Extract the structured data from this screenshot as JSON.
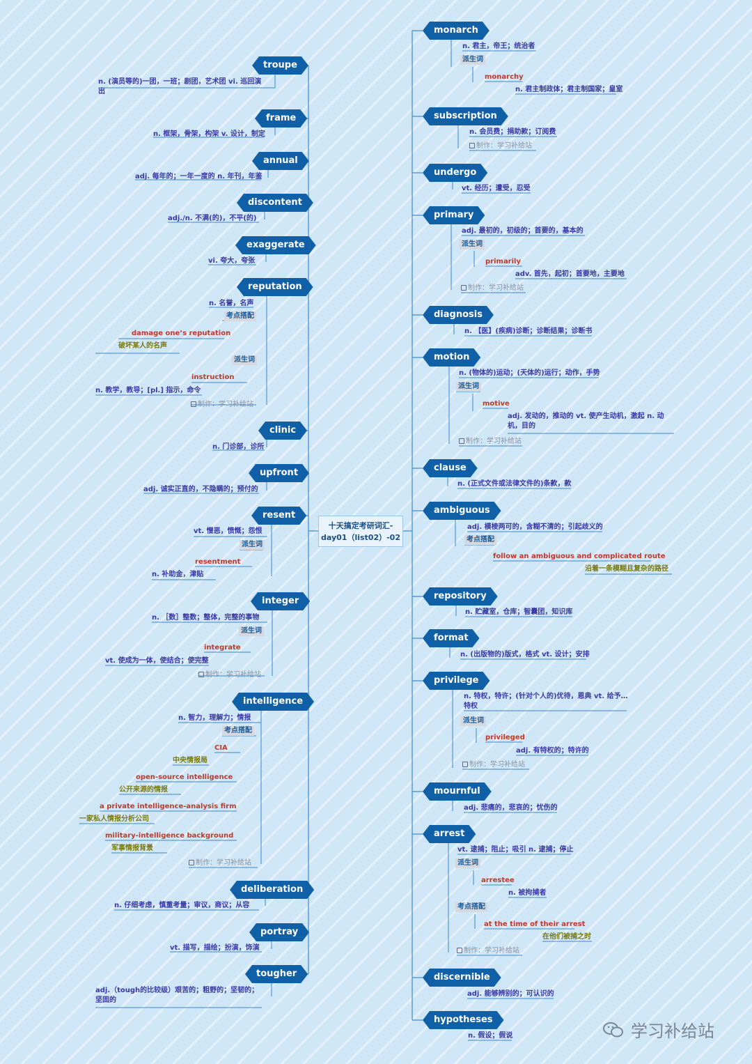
{
  "center": {
    "line1": "十天搞定考研词汇-",
    "line2": "day01（list02）-02"
  },
  "watermark": {
    "text": "学习补给站",
    "icon": "wechat-icon"
  },
  "colors": {
    "node": "#1060a8",
    "definition": "#3a3aa6",
    "phrase": "#c0392b",
    "translation": "#7a7a10",
    "tag_bg": "#d5d8de"
  },
  "left": [
    {
      "word": "troupe",
      "definition": "n. (演员等的)一团，一班；剧团，艺术团 vi. 巡回演出"
    },
    {
      "word": "frame",
      "definition": "n. 框架，骨架，构架 v. 设计，制定"
    },
    {
      "word": "annual",
      "definition": "adj. 每年的；一年一度的 n. 年刊，年鉴"
    },
    {
      "word": "discontent",
      "definition": "adj./n. 不满(的)，不平(的)"
    },
    {
      "word": "exaggerate",
      "definition": "vi. 夸大，夸张"
    },
    {
      "word": "reputation",
      "definition": "n. 名誉，名声",
      "tag1": "考点搭配",
      "phrase": "damage one’s reputation",
      "translation": "破坏某人的名声",
      "tag2": "派生词",
      "derived": "instruction",
      "derived_def": "n. 教学，教导；[pl.] 指示，命令",
      "maker": "制作：学习补给站"
    },
    {
      "word": "clinic",
      "definition": "n. 门诊部，诊所"
    },
    {
      "word": "upfront",
      "definition": "adj. 诚实正直的，不隐瞒的；预付的"
    },
    {
      "word": "resent",
      "definition": "vt. 憎恶，愤慨；怨恨",
      "tag1": "派生词",
      "derived": "resentment",
      "derived_def": "n. 补助金，津贴"
    },
    {
      "word": "integer",
      "definition": "n. ［数］整数；整体，完整的事物",
      "tag1": "派生词",
      "derived": "integrate",
      "derived_def": "vt. 使成为一体，使结合；使完整",
      "maker": "制作：学习补给站"
    },
    {
      "word": "intelligence",
      "definition": "n. 智力，理解力；情报",
      "tag1": "考点搭配",
      "phrases": [
        {
          "en": "CIA",
          "zh": "中央情报局"
        },
        {
          "en": "open-source intelligence",
          "zh": "公开来源的情报"
        },
        {
          "en": "a private intelligence-analysis firm",
          "zh": "一家私人情报分析公司"
        },
        {
          "en": "military-intelligence background",
          "zh": "军事情报背景"
        }
      ],
      "maker": "制作：学习补给站"
    },
    {
      "word": "deliberation",
      "definition": "n. 仔细考虑，慎重考量；审议，商议；从容"
    },
    {
      "word": "portray",
      "definition": "vt. 描写，描绘；扮演，饰演"
    },
    {
      "word": "tougher",
      "definition": "adj.（tough的比较级）艰苦的；粗野的；坚韧的；坚固的"
    }
  ],
  "right": [
    {
      "word": "monarch",
      "definition": "n. 君主，帝王；统治者",
      "tag1": "派生词",
      "derived": "monarchy",
      "derived_def": "n. 君主制政体；君主制国家；皇室"
    },
    {
      "word": "subscription",
      "definition": "n. 会员费；捐助款；订阅费",
      "maker": "制作：学习补给站"
    },
    {
      "word": "undergo",
      "definition": "vt. 经历；遭受，忍受"
    },
    {
      "word": "primary",
      "definition": "adj. 最初的，初级的；首要的，基本的",
      "tag1": "派生词",
      "derived": "primarily",
      "derived_def": "adv. 首先，起初；首要地，主要地",
      "maker": "制作：学习补给站"
    },
    {
      "word": "diagnosis",
      "definition": "n. 【医】(疾病)诊断；诊断结果；诊断书"
    },
    {
      "word": "motion",
      "definition": "n. (物体的)运动；(天体的)运行；动作，手势",
      "tag1": "派生词",
      "derived": "motive",
      "derived_def": "adj. 发动的，推动的 vt. 使产生动机，激起 n. 动机，目的",
      "maker": "制作：学习补给站"
    },
    {
      "word": "clause",
      "definition": "n. (正式文件或法律文件的)条款，款"
    },
    {
      "word": "ambiguous",
      "definition": "adj. 模棱两可的，含糊不清的；引起歧义的",
      "tag1": "考点搭配",
      "phrase": "follow an ambiguous and complicated route",
      "translation": "沿着一条模糊且复杂的路径"
    },
    {
      "word": "repository",
      "definition": "n. 贮藏室，仓库；智囊团，知识库"
    },
    {
      "word": "format",
      "definition": "n. (出版物的)版式，格式 vt. 设计；安排"
    },
    {
      "word": "privilege",
      "definition": "n. 特权，特许；(针对个人的)优待，恩典 vt. 给予…特权",
      "tag1": "派生词",
      "derived": "privileged",
      "derived_def": "adj. 有特权的；特许的",
      "maker": "制作：学习补给站"
    },
    {
      "word": "mournful",
      "definition": "adj. 悲痛的，悲哀的；忧伤的"
    },
    {
      "word": "arrest",
      "definition": "vt. 逮捕；阻止；吸引 n. 逮捕；停止",
      "tag1": "派生词",
      "derived": "arrestee",
      "derived_def": "n. 被拘捕者",
      "tag2": "考点搭配",
      "phrase": "at the time of their arrest",
      "translation": "在他们被捕之时",
      "maker": "制作：学习补给站"
    },
    {
      "word": "discernible",
      "definition": "adj. 能够辨别的；可认识的"
    },
    {
      "word": "hypotheses",
      "definition": "n. 假设；假说"
    }
  ]
}
